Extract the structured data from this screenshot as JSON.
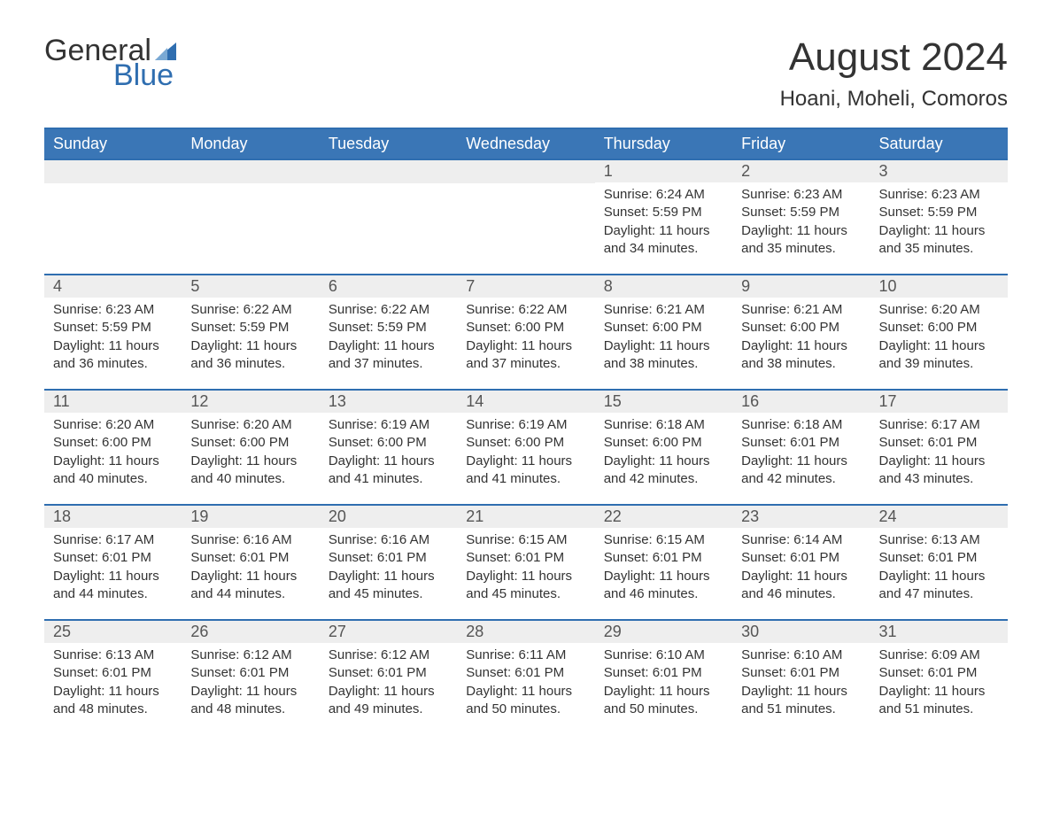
{
  "logo": {
    "text_top": "General",
    "text_bottom": "Blue",
    "brand_color": "#2f6eb0"
  },
  "title": "August 2024",
  "location": "Hoani, Moheli, Comoros",
  "colors": {
    "header_bg": "#3a76b6",
    "header_text": "#ffffff",
    "row_border": "#2f6eb0",
    "daynum_bg": "#eeeeee",
    "daynum_text": "#555555",
    "body_text": "#333333",
    "page_bg": "#ffffff"
  },
  "typography": {
    "title_fontsize": 44,
    "location_fontsize": 24,
    "header_fontsize": 18,
    "daynum_fontsize": 18,
    "body_fontsize": 15,
    "font_family": "Arial"
  },
  "day_headers": [
    "Sunday",
    "Monday",
    "Tuesday",
    "Wednesday",
    "Thursday",
    "Friday",
    "Saturday"
  ],
  "weeks": [
    [
      {
        "blank": true
      },
      {
        "blank": true
      },
      {
        "blank": true
      },
      {
        "blank": true
      },
      {
        "n": "1",
        "sunrise": "6:24 AM",
        "sunset": "5:59 PM",
        "daylight": "11 hours and 34 minutes."
      },
      {
        "n": "2",
        "sunrise": "6:23 AM",
        "sunset": "5:59 PM",
        "daylight": "11 hours and 35 minutes."
      },
      {
        "n": "3",
        "sunrise": "6:23 AM",
        "sunset": "5:59 PM",
        "daylight": "11 hours and 35 minutes."
      }
    ],
    [
      {
        "n": "4",
        "sunrise": "6:23 AM",
        "sunset": "5:59 PM",
        "daylight": "11 hours and 36 minutes."
      },
      {
        "n": "5",
        "sunrise": "6:22 AM",
        "sunset": "5:59 PM",
        "daylight": "11 hours and 36 minutes."
      },
      {
        "n": "6",
        "sunrise": "6:22 AM",
        "sunset": "5:59 PM",
        "daylight": "11 hours and 37 minutes."
      },
      {
        "n": "7",
        "sunrise": "6:22 AM",
        "sunset": "6:00 PM",
        "daylight": "11 hours and 37 minutes."
      },
      {
        "n": "8",
        "sunrise": "6:21 AM",
        "sunset": "6:00 PM",
        "daylight": "11 hours and 38 minutes."
      },
      {
        "n": "9",
        "sunrise": "6:21 AM",
        "sunset": "6:00 PM",
        "daylight": "11 hours and 38 minutes."
      },
      {
        "n": "10",
        "sunrise": "6:20 AM",
        "sunset": "6:00 PM",
        "daylight": "11 hours and 39 minutes."
      }
    ],
    [
      {
        "n": "11",
        "sunrise": "6:20 AM",
        "sunset": "6:00 PM",
        "daylight": "11 hours and 40 minutes."
      },
      {
        "n": "12",
        "sunrise": "6:20 AM",
        "sunset": "6:00 PM",
        "daylight": "11 hours and 40 minutes."
      },
      {
        "n": "13",
        "sunrise": "6:19 AM",
        "sunset": "6:00 PM",
        "daylight": "11 hours and 41 minutes."
      },
      {
        "n": "14",
        "sunrise": "6:19 AM",
        "sunset": "6:00 PM",
        "daylight": "11 hours and 41 minutes."
      },
      {
        "n": "15",
        "sunrise": "6:18 AM",
        "sunset": "6:00 PM",
        "daylight": "11 hours and 42 minutes."
      },
      {
        "n": "16",
        "sunrise": "6:18 AM",
        "sunset": "6:01 PM",
        "daylight": "11 hours and 42 minutes."
      },
      {
        "n": "17",
        "sunrise": "6:17 AM",
        "sunset": "6:01 PM",
        "daylight": "11 hours and 43 minutes."
      }
    ],
    [
      {
        "n": "18",
        "sunrise": "6:17 AM",
        "sunset": "6:01 PM",
        "daylight": "11 hours and 44 minutes."
      },
      {
        "n": "19",
        "sunrise": "6:16 AM",
        "sunset": "6:01 PM",
        "daylight": "11 hours and 44 minutes."
      },
      {
        "n": "20",
        "sunrise": "6:16 AM",
        "sunset": "6:01 PM",
        "daylight": "11 hours and 45 minutes."
      },
      {
        "n": "21",
        "sunrise": "6:15 AM",
        "sunset": "6:01 PM",
        "daylight": "11 hours and 45 minutes."
      },
      {
        "n": "22",
        "sunrise": "6:15 AM",
        "sunset": "6:01 PM",
        "daylight": "11 hours and 46 minutes."
      },
      {
        "n": "23",
        "sunrise": "6:14 AM",
        "sunset": "6:01 PM",
        "daylight": "11 hours and 46 minutes."
      },
      {
        "n": "24",
        "sunrise": "6:13 AM",
        "sunset": "6:01 PM",
        "daylight": "11 hours and 47 minutes."
      }
    ],
    [
      {
        "n": "25",
        "sunrise": "6:13 AM",
        "sunset": "6:01 PM",
        "daylight": "11 hours and 48 minutes."
      },
      {
        "n": "26",
        "sunrise": "6:12 AM",
        "sunset": "6:01 PM",
        "daylight": "11 hours and 48 minutes."
      },
      {
        "n": "27",
        "sunrise": "6:12 AM",
        "sunset": "6:01 PM",
        "daylight": "11 hours and 49 minutes."
      },
      {
        "n": "28",
        "sunrise": "6:11 AM",
        "sunset": "6:01 PM",
        "daylight": "11 hours and 50 minutes."
      },
      {
        "n": "29",
        "sunrise": "6:10 AM",
        "sunset": "6:01 PM",
        "daylight": "11 hours and 50 minutes."
      },
      {
        "n": "30",
        "sunrise": "6:10 AM",
        "sunset": "6:01 PM",
        "daylight": "11 hours and 51 minutes."
      },
      {
        "n": "31",
        "sunrise": "6:09 AM",
        "sunset": "6:01 PM",
        "daylight": "11 hours and 51 minutes."
      }
    ]
  ],
  "labels": {
    "sunrise": "Sunrise:",
    "sunset": "Sunset:",
    "daylight": "Daylight:"
  }
}
